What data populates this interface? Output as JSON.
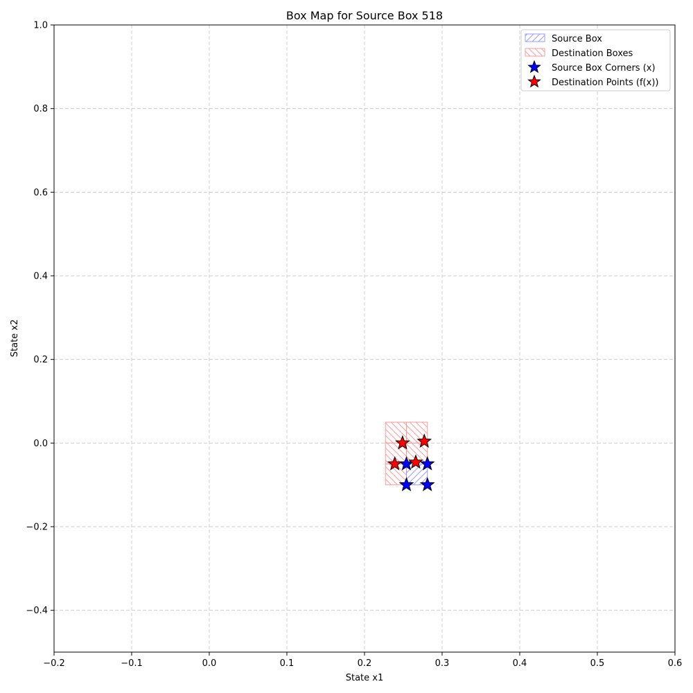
{
  "chart_data": {
    "type": "scatter",
    "title": "Box Map for Source Box 518",
    "xlabel": "State x1",
    "ylabel": "State x2",
    "xlim": [
      -0.2,
      0.6
    ],
    "ylim": [
      -0.5,
      1.0
    ],
    "xticks": [
      -0.2,
      -0.1,
      0.0,
      0.1,
      0.2,
      0.3,
      0.4,
      0.5,
      0.6
    ],
    "xtick_labels": [
      "−0.2",
      "−0.1",
      "0.0",
      "0.1",
      "0.2",
      "0.3",
      "0.4",
      "0.5",
      "0.6"
    ],
    "yticks": [
      -0.4,
      -0.2,
      0.0,
      0.2,
      0.4,
      0.6,
      0.8,
      1.0
    ],
    "ytick_labels": [
      "−0.4",
      "−0.2",
      "0.0",
      "0.2",
      "0.4",
      "0.6",
      "0.8",
      "1.0"
    ],
    "grid": true,
    "legend_position": "top-right",
    "source_box": {
      "name": "Source Box",
      "color": "#6666ff",
      "x": [
        0.254,
        0.281
      ],
      "y": [
        -0.1,
        -0.05
      ]
    },
    "destination_boxes": {
      "name": "Destination Boxes",
      "color": "#ff6666",
      "boxes": [
        {
          "x": [
            0.227,
            0.254
          ],
          "y": [
            0.0,
            0.05
          ]
        },
        {
          "x": [
            0.254,
            0.281
          ],
          "y": [
            0.0,
            0.05
          ]
        },
        {
          "x": [
            0.227,
            0.254
          ],
          "y": [
            -0.05,
            0.0
          ]
        },
        {
          "x": [
            0.254,
            0.281
          ],
          "y": [
            -0.05,
            0.0
          ]
        },
        {
          "x": [
            0.227,
            0.254
          ],
          "y": [
            -0.1,
            -0.05
          ]
        }
      ]
    },
    "series": [
      {
        "name": "Source Box Corners (x)",
        "color": "#0000ff",
        "points": [
          {
            "x": 0.254,
            "y": -0.05
          },
          {
            "x": 0.281,
            "y": -0.05
          },
          {
            "x": 0.254,
            "y": -0.1
          },
          {
            "x": 0.281,
            "y": -0.1
          }
        ]
      },
      {
        "name": "Destination Points (f(x))",
        "color": "#ff0000",
        "points": [
          {
            "x": 0.249,
            "y": 0.0
          },
          {
            "x": 0.277,
            "y": 0.004
          },
          {
            "x": 0.239,
            "y": -0.05
          },
          {
            "x": 0.266,
            "y": -0.046
          }
        ]
      }
    ]
  }
}
